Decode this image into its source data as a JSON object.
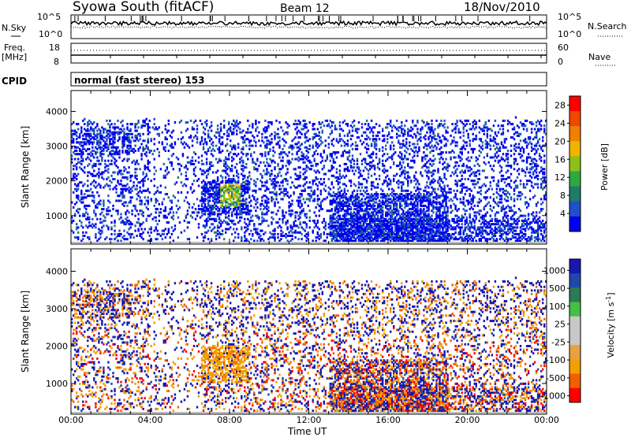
{
  "header": {
    "title": "Syowa South (fitACF)",
    "beam": "Beam 12",
    "date": "18/Nov/2010"
  },
  "noise_panel": {
    "left_label": "N.Sky",
    "right_label": "N.Search",
    "left_ticks": [
      "10^5",
      "10^0"
    ],
    "right_ticks": [
      "10^5",
      "10^0"
    ]
  },
  "freq_panel": {
    "left_label_1": "Freq.",
    "left_label_2": "[MHz]",
    "left_ticks": [
      "18",
      "8"
    ],
    "right_label": "Nave",
    "right_ticks": [
      "60",
      "0"
    ]
  },
  "cpid": {
    "label": "CPID",
    "text": "normal (fast stereo) 153"
  },
  "colors": {
    "power": [
      "#0000ee",
      "#2050c8",
      "#207a6a",
      "#2ea840",
      "#8cc018",
      "#f0b400",
      "#f08000",
      "#f04800",
      "#ff0000"
    ],
    "velocity": [
      "#ff0000",
      "#f06000",
      "#f0a000",
      "#e8a040",
      "#c8c8c8",
      "#c8c8c8",
      "#44c044",
      "#2e7a55",
      "#1f48aa",
      "#1818b0"
    ],
    "ground_scatter": "#c0c0c0"
  },
  "chart_data": [
    {
      "type": "heatmap",
      "name": "power",
      "ylabel": "Slant Range [km]",
      "yticks": [
        "1000",
        "2000",
        "3000",
        "4000"
      ],
      "xticks": [
        "00:00",
        "04:00",
        "08:00",
        "12:00",
        "16:00",
        "20:00",
        "00:00"
      ],
      "xlim": [
        0,
        24
      ],
      "ylim": [
        180,
        4600
      ],
      "colorbar_label": "Power [dB]",
      "colorbar_ticks": [
        "28",
        "24",
        "20",
        "16",
        "12",
        "8",
        "4"
      ],
      "colorbar_range": [
        0,
        30
      ]
    },
    {
      "type": "heatmap",
      "name": "velocity",
      "ylabel": "Slant Range [km]",
      "xlabel": "Time UT",
      "yticks": [
        "1000",
        "2000",
        "3000",
        "4000"
      ],
      "xticks": [
        "00:00",
        "04:00",
        "08:00",
        "12:00",
        "16:00",
        "20:00",
        "00:00"
      ],
      "xlim": [
        0,
        24
      ],
      "ylim": [
        180,
        4600
      ],
      "colorbar_label": "Velocity [m s",
      "colorbar_label_sup": "-1",
      "colorbar_label_end": "]",
      "colorbar_ticks": [
        "1000",
        "500",
        "100",
        "25",
        "-25",
        "-100",
        "-500",
        "-1000"
      ]
    }
  ]
}
